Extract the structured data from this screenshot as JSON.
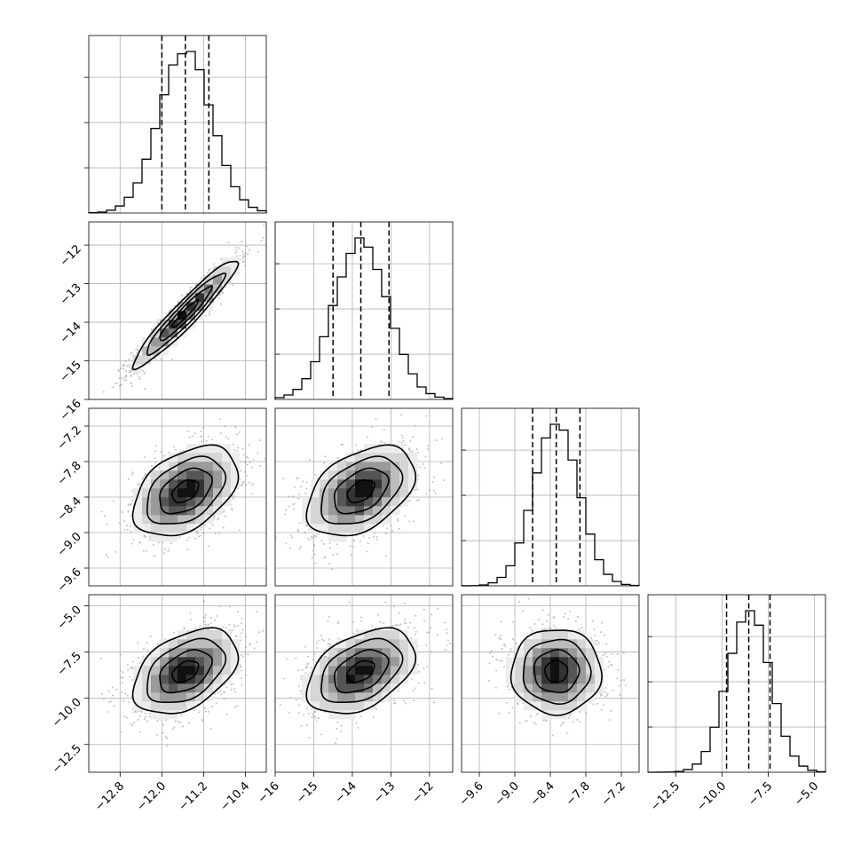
{
  "chart_data": {
    "type": "corner",
    "colors": {
      "lines": "#000000",
      "grid": "#b0b0b0",
      "scatter": "#808080",
      "density_dark": "#000000",
      "density_light": "#ffffff"
    },
    "grid": true,
    "parameters": [
      {
        "range": [
          -13.4,
          -10.0
        ],
        "ticks": [
          -12.8,
          -12.0,
          -11.2,
          -10.4
        ],
        "tick_labels": [
          "−12.8",
          "−12.0",
          "−11.2",
          "−10.4"
        ],
        "mean": -11.55,
        "sd": 0.5,
        "quantiles": [
          -12.0,
          -11.55,
          -11.1
        ]
      },
      {
        "range": [
          -16.0,
          -11.4
        ],
        "ticks": [
          -16,
          -15,
          -14,
          -13,
          -12
        ],
        "tick_labels": [
          "−16",
          "−15",
          "−14",
          "−13",
          "−12"
        ],
        "mean": -13.78,
        "sd": 0.7,
        "quantiles": [
          -14.5,
          -13.78,
          -13.05
        ]
      },
      {
        "range": [
          -9.9,
          -6.9
        ],
        "ticks": [
          -9.6,
          -9.0,
          -8.4,
          -7.8,
          -7.2
        ],
        "tick_labels": [
          "−9.6",
          "−9.0",
          "−8.4",
          "−7.8",
          "−7.2"
        ],
        "mean": -8.3,
        "sd": 0.38,
        "quantiles": [
          -8.7,
          -8.3,
          -7.9
        ]
      },
      {
        "range": [
          -14.0,
          -4.4
        ],
        "ticks": [
          -12.5,
          -10.0,
          -7.5,
          -5.0
        ],
        "tick_labels": [
          "−12.5",
          "−10.0",
          "−7.5",
          "−5.0"
        ],
        "mean": -8.55,
        "sd": 1.15,
        "quantiles": [
          -9.75,
          -8.55,
          -7.4
        ]
      }
    ],
    "y_tick_sets": [
      null,
      {
        "range": [
          -16.0,
          -11.4
        ],
        "ticks": [
          -16,
          -15,
          -14,
          -13,
          -12
        ],
        "tick_labels": [
          "−16",
          "−15",
          "−14",
          "−13",
          "−12"
        ]
      },
      {
        "range": [
          -9.9,
          -6.9
        ],
        "ticks": [
          -9.6,
          -9.0,
          -8.4,
          -7.8,
          -7.2
        ],
        "tick_labels": [
          "−9.6",
          "−9.0",
          "−8.4",
          "−7.8",
          "−7.2"
        ]
      },
      {
        "range": [
          -14.0,
          -4.4
        ],
        "ticks": [
          -12.5,
          -10.0,
          -7.5,
          -5.0
        ],
        "tick_labels": [
          "−12.5",
          "−10.0",
          "−7.5",
          "−5.0"
        ]
      }
    ],
    "correlations": [
      {
        "row": 1,
        "col": 0,
        "rho": 0.95
      },
      {
        "row": 2,
        "col": 0,
        "rho": 0.42
      },
      {
        "row": 2,
        "col": 1,
        "rho": 0.42
      },
      {
        "row": 3,
        "col": 0,
        "rho": 0.42
      },
      {
        "row": 3,
        "col": 1,
        "rho": 0.42
      },
      {
        "row": 3,
        "col": 2,
        "rho": 0.0
      }
    ],
    "contour_levels_sigma": [
      0.5,
      1.0,
      1.5,
      2.0
    ]
  }
}
